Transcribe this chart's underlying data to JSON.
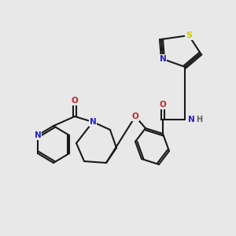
{
  "bg_color": "#e8e8e8",
  "fig_width": 3.0,
  "fig_height": 3.0,
  "dpi": 100,
  "bond_color": "#1a1a1a",
  "bond_lw": 1.5,
  "atom_colors": {
    "N": "#2020cc",
    "O": "#cc2020",
    "S": "#cccc00",
    "H": "#606060",
    "C": "#1a1a1a"
  },
  "font_size": 7.5
}
